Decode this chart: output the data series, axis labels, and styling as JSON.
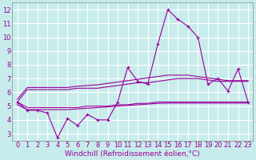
{
  "title": "",
  "xlabel": "Windchill (Refroidissement éolien,°C)",
  "ylabel": "",
  "background_color": "#c8ecec",
  "grid_color": "#ffffff",
  "line_color": "#990099",
  "x": [
    0,
    1,
    2,
    3,
    4,
    5,
    6,
    7,
    8,
    9,
    10,
    11,
    12,
    13,
    14,
    15,
    16,
    17,
    18,
    19,
    20,
    21,
    22,
    23
  ],
  "y_main": [
    5.3,
    4.7,
    4.7,
    4.5,
    2.7,
    4.1,
    3.6,
    4.4,
    4.0,
    4.0,
    5.3,
    7.8,
    6.8,
    6.6,
    9.5,
    12.0,
    11.3,
    10.8,
    10.0,
    6.6,
    7.0,
    6.1,
    7.7,
    5.3
  ],
  "y_upper1": [
    5.3,
    6.2,
    6.2,
    6.2,
    6.2,
    6.2,
    6.3,
    6.3,
    6.3,
    6.4,
    6.5,
    6.6,
    6.7,
    6.7,
    6.8,
    6.9,
    7.0,
    7.0,
    7.0,
    6.9,
    6.8,
    6.8,
    6.8,
    6.8
  ],
  "y_upper2": [
    5.5,
    6.35,
    6.35,
    6.35,
    6.35,
    6.35,
    6.45,
    6.5,
    6.55,
    6.65,
    6.75,
    6.85,
    6.95,
    7.05,
    7.15,
    7.25,
    7.25,
    7.25,
    7.15,
    7.05,
    6.95,
    6.85,
    6.85,
    6.85
  ],
  "y_lower1": [
    5.3,
    4.9,
    4.9,
    4.9,
    4.9,
    4.9,
    4.9,
    5.0,
    5.0,
    5.0,
    5.1,
    5.1,
    5.2,
    5.2,
    5.3,
    5.3,
    5.3,
    5.3,
    5.3,
    5.3,
    5.3,
    5.3,
    5.3,
    5.3
  ],
  "y_lower2": [
    5.1,
    4.75,
    4.75,
    4.75,
    4.75,
    4.75,
    4.8,
    4.85,
    4.9,
    4.95,
    5.0,
    5.05,
    5.1,
    5.15,
    5.2,
    5.22,
    5.22,
    5.22,
    5.22,
    5.22,
    5.22,
    5.22,
    5.22,
    5.22
  ],
  "xlim": [
    -0.5,
    23.5
  ],
  "ylim": [
    2.5,
    12.5
  ],
  "yticks": [
    3,
    4,
    5,
    6,
    7,
    8,
    9,
    10,
    11,
    12
  ],
  "xticks": [
    0,
    1,
    2,
    3,
    4,
    5,
    6,
    7,
    8,
    9,
    10,
    11,
    12,
    13,
    14,
    15,
    16,
    17,
    18,
    19,
    20,
    21,
    22,
    23
  ],
  "linewidth": 0.8,
  "markersize": 3.0,
  "label_fontsize": 6.5,
  "tick_fontsize": 6.0
}
